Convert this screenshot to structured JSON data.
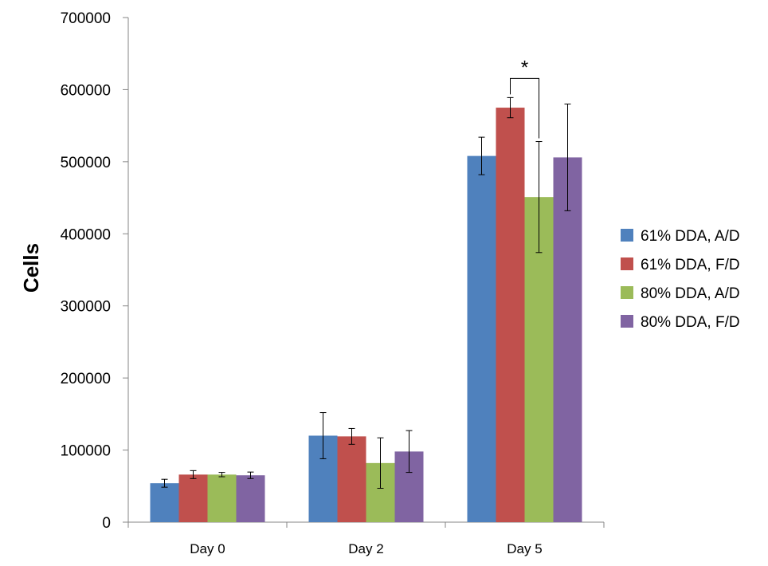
{
  "chart_data": {
    "type": "bar",
    "title": "",
    "xlabel": "",
    "ylabel": "Cells",
    "ylim": [
      0,
      700000
    ],
    "yticks": [
      0,
      100000,
      200000,
      300000,
      400000,
      500000,
      600000,
      700000
    ],
    "grid": false,
    "legend_position": "right",
    "categories": [
      "Day 0",
      "Day 2",
      "Day 5"
    ],
    "series": [
      {
        "name": "61% DDA, A/D",
        "color": "#4F81BD",
        "values": [
          54000,
          120000,
          508000
        ],
        "errors": [
          5500,
          32000,
          26000
        ]
      },
      {
        "name": "61% DDA, F/D",
        "color": "#C0504D",
        "values": [
          66000,
          119000,
          575000
        ],
        "errors": [
          5500,
          11000,
          14000
        ]
      },
      {
        "name": "80% DDA, A/D",
        "color": "#9BBB59",
        "values": [
          66000,
          82000,
          451000
        ],
        "errors": [
          3000,
          35000,
          77000
        ]
      },
      {
        "name": "80% DDA, F/D",
        "color": "#8064A2",
        "values": [
          65000,
          98000,
          506000
        ],
        "errors": [
          4500,
          29000,
          74000
        ]
      }
    ],
    "annotations": [
      {
        "text": "*",
        "category": "Day 5",
        "between_series": [
          1,
          2
        ]
      }
    ]
  }
}
